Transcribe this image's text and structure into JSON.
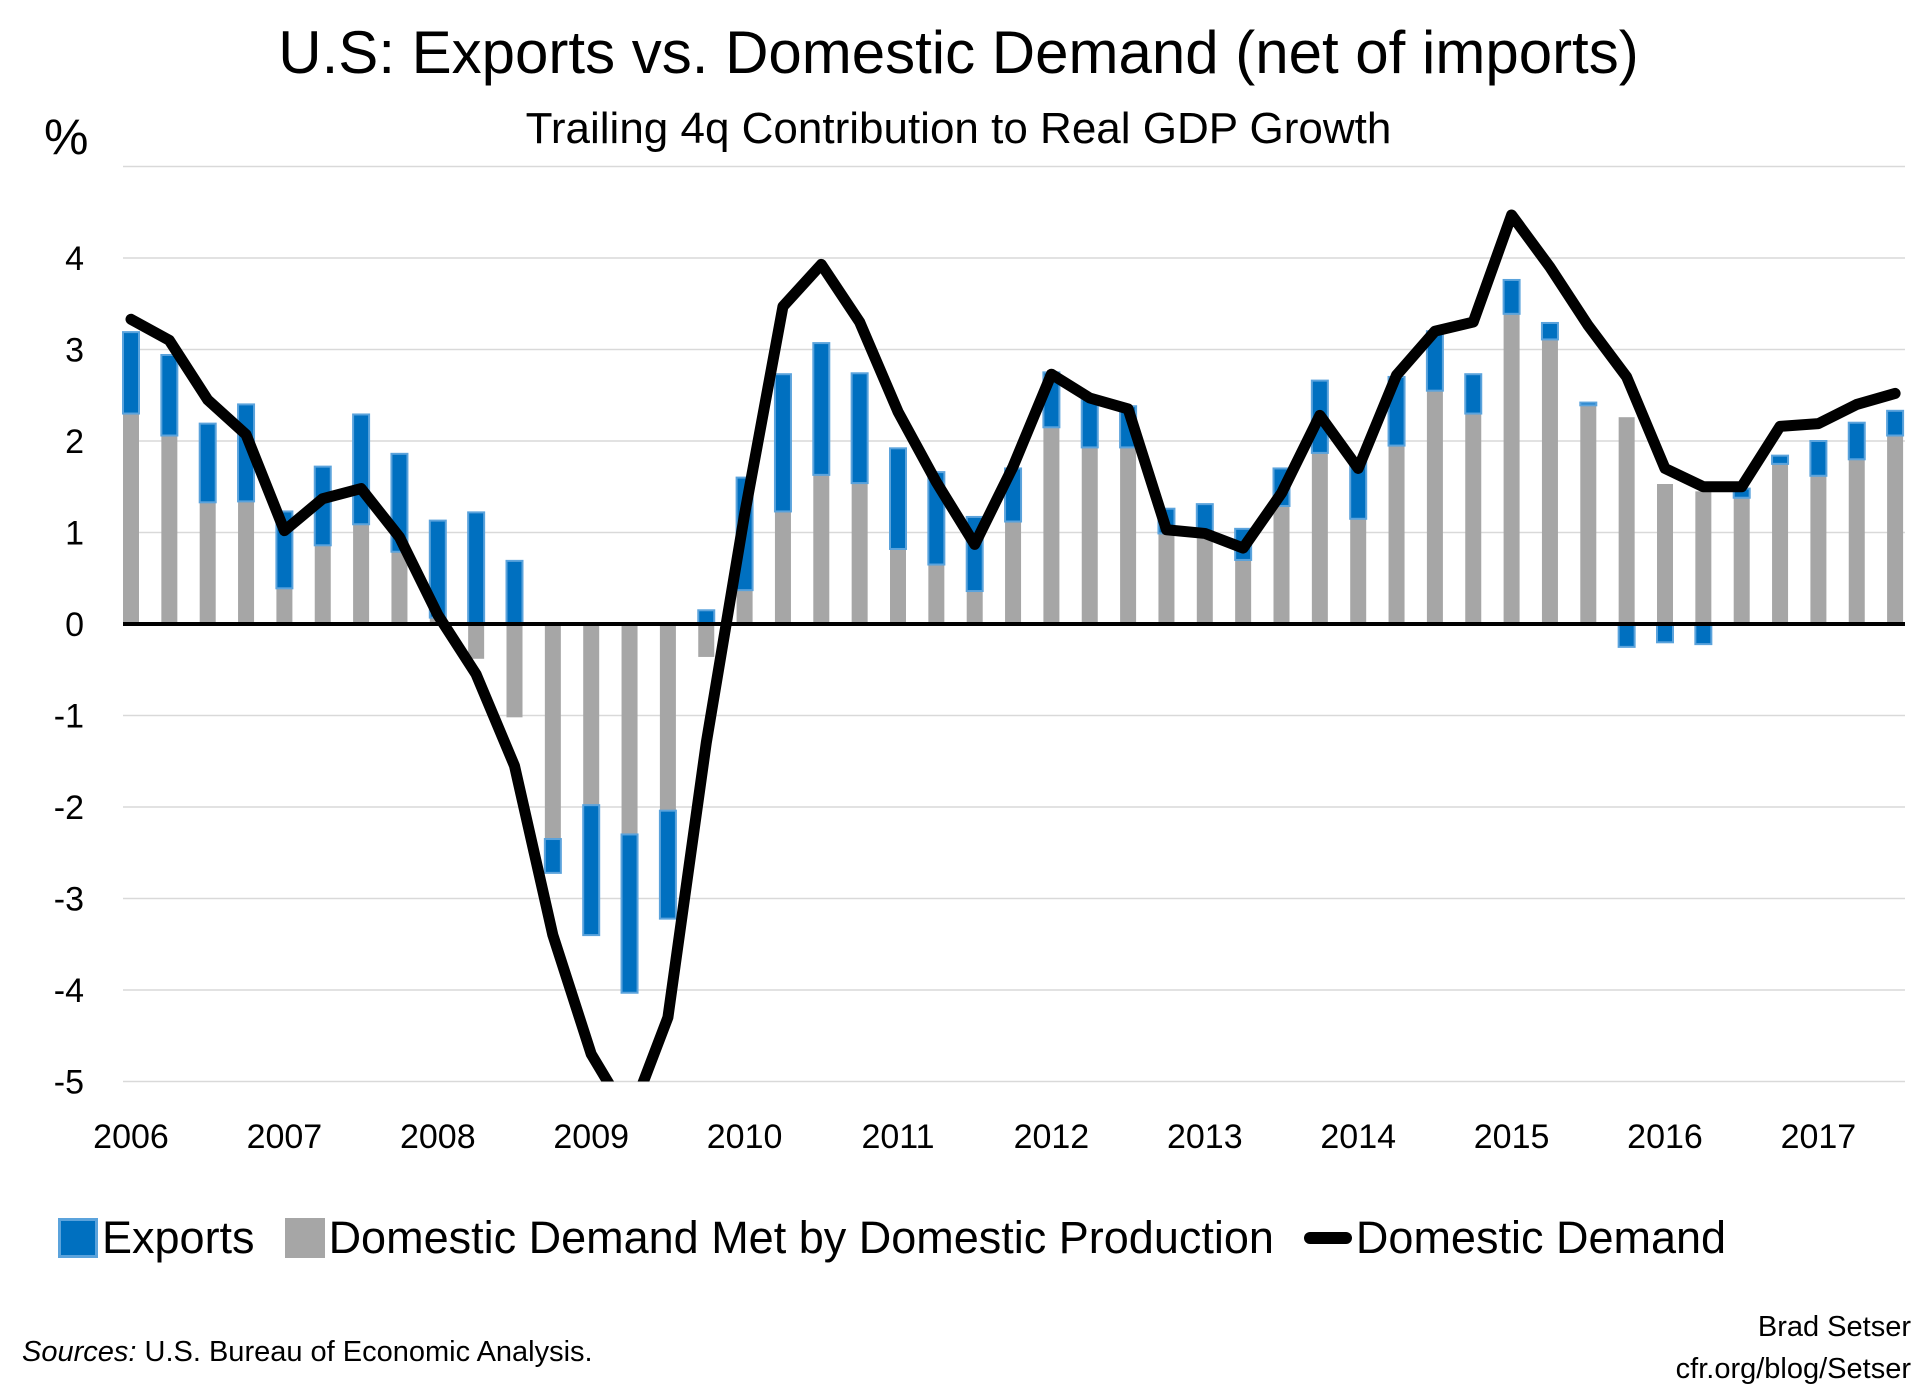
{
  "chart_data": {
    "type": "bar",
    "stacked": true,
    "title": "U.S: Exports vs. Domestic Demand (net of imports)",
    "subtitle": "Trailing 4q Contribution to Real GDP Growth",
    "ylabel": "%",
    "xlabel": "",
    "ylim": [
      -5,
      5
    ],
    "yticks": [
      "-5",
      "-4",
      "-3",
      "-2",
      "-1",
      "0",
      "1",
      "2",
      "3",
      "4"
    ],
    "xtick_labels": [
      "2006",
      "2007",
      "2008",
      "2009",
      "2010",
      "2011",
      "2012",
      "2013",
      "2014",
      "2015",
      "2016",
      "2017"
    ],
    "grid": true,
    "legend_placement": "bottom",
    "categories": [
      "2006Q1",
      "2006Q2",
      "2006Q3",
      "2006Q4",
      "2007Q1",
      "2007Q2",
      "2007Q3",
      "2007Q4",
      "2008Q1",
      "2008Q2",
      "2008Q3",
      "2008Q4",
      "2009Q1",
      "2009Q2",
      "2009Q3",
      "2009Q4",
      "2010Q1",
      "2010Q2",
      "2010Q3",
      "2010Q4",
      "2011Q1",
      "2011Q2",
      "2011Q3",
      "2011Q4",
      "2012Q1",
      "2012Q2",
      "2012Q3",
      "2012Q4",
      "2013Q1",
      "2013Q2",
      "2013Q3",
      "2013Q4",
      "2014Q1",
      "2014Q2",
      "2014Q3",
      "2014Q4",
      "2015Q1",
      "2015Q2",
      "2015Q3",
      "2015Q4",
      "2016Q1",
      "2016Q2",
      "2016Q3",
      "2016Q4",
      "2017Q1",
      "2017Q2",
      "2017Q3"
    ],
    "series": [
      {
        "name": "Exports",
        "kind": "bar",
        "color": "#0070C0",
        "values": [
          0.89,
          0.88,
          0.86,
          1.06,
          0.84,
          0.86,
          1.2,
          1.07,
          1.06,
          1.22,
          0.69,
          -0.37,
          -1.42,
          -1.73,
          -1.18,
          0.15,
          1.23,
          1.5,
          1.44,
          1.2,
          1.1,
          1.01,
          0.81,
          0.58,
          0.6,
          0.54,
          0.45,
          0.27,
          0.36,
          0.34,
          0.41,
          0.79,
          0.65,
          0.75,
          0.65,
          0.43,
          0.37,
          0.18,
          0.03,
          -0.25,
          -0.2,
          -0.22,
          0.1,
          0.09,
          0.38,
          0.4,
          0.27
        ]
      },
      {
        "name": "Domestic Demand Met by Domestic Production",
        "kind": "bar",
        "color": "#A6A6A6",
        "values": [
          2.3,
          2.06,
          1.33,
          1.34,
          0.39,
          0.86,
          1.09,
          0.79,
          0.07,
          -0.38,
          -1.02,
          -2.35,
          -1.98,
          -2.3,
          -2.04,
          -0.36,
          0.37,
          1.23,
          1.63,
          1.54,
          0.82,
          0.65,
          0.36,
          1.12,
          2.15,
          1.93,
          1.93,
          0.99,
          0.95,
          0.7,
          1.29,
          1.87,
          1.15,
          1.95,
          2.55,
          2.3,
          3.39,
          3.11,
          2.39,
          2.26,
          1.53,
          1.45,
          1.38,
          1.75,
          1.62,
          1.8,
          2.06
        ]
      },
      {
        "name": "Domestic Demand",
        "kind": "line",
        "color": "#000000",
        "values": [
          3.33,
          3.1,
          2.45,
          2.07,
          1.02,
          1.37,
          1.48,
          0.95,
          0.1,
          -0.55,
          -1.55,
          -3.4,
          -4.7,
          -5.4,
          -4.3,
          -1.3,
          1.2,
          3.47,
          3.93,
          3.3,
          2.32,
          1.55,
          0.87,
          1.72,
          2.73,
          2.47,
          2.35,
          1.03,
          0.99,
          0.83,
          1.43,
          2.28,
          1.7,
          2.72,
          3.2,
          3.3,
          4.47,
          3.9,
          3.26,
          2.7,
          1.7,
          1.5,
          1.5,
          2.16,
          2.19,
          2.4,
          2.52
        ]
      }
    ]
  },
  "legend": [
    {
      "label": "Exports",
      "swatch": "blue"
    },
    {
      "label": "Domestic Demand Met by Domestic Production",
      "swatch": "gray"
    },
    {
      "label": "Domestic Demand",
      "swatch": "line"
    }
  ],
  "footer": {
    "sources_label": "Sources:",
    "sources_text": " U.S. Bureau of Economic Analysis.",
    "author": "Brad Setser",
    "site": "cfr.org/blog/Setser"
  },
  "colors": {
    "exports": "#0070C0",
    "exports_border": "#5BA3DC",
    "domestic": "#A6A6A6",
    "line": "#000000",
    "grid": "#D9D9D9"
  }
}
